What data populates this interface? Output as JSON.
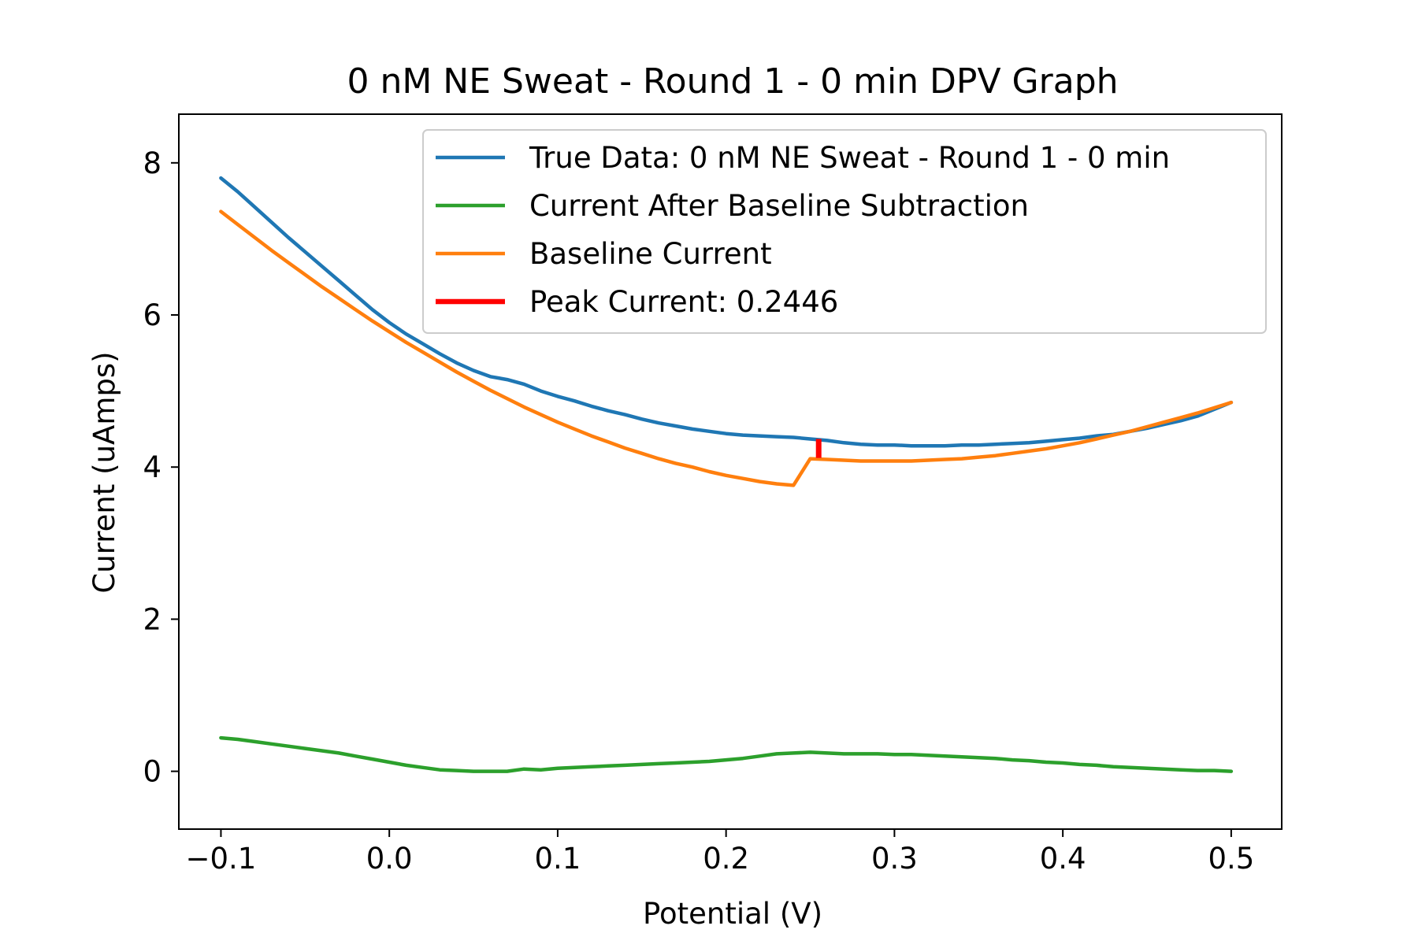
{
  "chart_data": {
    "type": "line",
    "title": "0 nM NE Sweat - Round 1 - 0 min DPV Graph",
    "xlabel": "Potential (V)",
    "ylabel": "Current (uAmps)",
    "xlim": [
      -0.125,
      0.53
    ],
    "ylim": [
      -0.76,
      8.64
    ],
    "xticks": [
      -0.1,
      0.0,
      0.1,
      0.2,
      0.3,
      0.4,
      0.5
    ],
    "xtick_labels": [
      "−0.1",
      "0.0",
      "0.1",
      "0.2",
      "0.3",
      "0.4",
      "0.5"
    ],
    "yticks": [
      0,
      2,
      4,
      6,
      8
    ],
    "ytick_labels": [
      "0",
      "2",
      "4",
      "6",
      "8"
    ],
    "grid": false,
    "legend_position": "top-right",
    "series": [
      {
        "name": "True Data: 0 nM NE Sweat - Round 1 - 0 min",
        "color": "#1f77b4",
        "x": [
          -0.1,
          -0.09,
          -0.08,
          -0.07,
          -0.06,
          -0.05,
          -0.04,
          -0.03,
          -0.02,
          -0.01,
          0.0,
          0.01,
          0.02,
          0.03,
          0.04,
          0.05,
          0.06,
          0.07,
          0.08,
          0.09,
          0.1,
          0.11,
          0.12,
          0.13,
          0.14,
          0.15,
          0.16,
          0.17,
          0.18,
          0.19,
          0.2,
          0.21,
          0.22,
          0.23,
          0.24,
          0.25,
          0.26,
          0.27,
          0.28,
          0.29,
          0.3,
          0.31,
          0.32,
          0.33,
          0.34,
          0.35,
          0.36,
          0.37,
          0.38,
          0.39,
          0.4,
          0.41,
          0.42,
          0.43,
          0.44,
          0.45,
          0.46,
          0.47,
          0.48,
          0.49,
          0.5
        ],
        "y": [
          7.8,
          7.62,
          7.42,
          7.22,
          7.02,
          6.83,
          6.64,
          6.45,
          6.26,
          6.07,
          5.9,
          5.75,
          5.62,
          5.49,
          5.37,
          5.27,
          5.19,
          5.15,
          5.09,
          5.0,
          4.93,
          4.87,
          4.8,
          4.74,
          4.69,
          4.63,
          4.58,
          4.54,
          4.5,
          4.47,
          4.44,
          4.42,
          4.41,
          4.4,
          4.39,
          4.37,
          4.35,
          4.32,
          4.3,
          4.29,
          4.29,
          4.28,
          4.28,
          4.28,
          4.29,
          4.29,
          4.3,
          4.31,
          4.32,
          4.34,
          4.36,
          4.38,
          4.41,
          4.43,
          4.47,
          4.51,
          4.56,
          4.61,
          4.67,
          4.76,
          4.85
        ]
      },
      {
        "name": "Current After Baseline Subtraction",
        "color": "#2ca02c",
        "x": [
          -0.1,
          -0.09,
          -0.08,
          -0.07,
          -0.06,
          -0.05,
          -0.04,
          -0.03,
          -0.02,
          -0.01,
          0.0,
          0.01,
          0.02,
          0.03,
          0.04,
          0.05,
          0.06,
          0.07,
          0.08,
          0.09,
          0.1,
          0.11,
          0.12,
          0.13,
          0.14,
          0.15,
          0.16,
          0.17,
          0.18,
          0.19,
          0.2,
          0.21,
          0.22,
          0.23,
          0.24,
          0.25,
          0.26,
          0.27,
          0.28,
          0.29,
          0.3,
          0.31,
          0.32,
          0.33,
          0.34,
          0.35,
          0.36,
          0.37,
          0.38,
          0.39,
          0.4,
          0.41,
          0.42,
          0.43,
          0.44,
          0.45,
          0.46,
          0.47,
          0.48,
          0.49,
          0.5
        ],
        "y": [
          0.44,
          0.42,
          0.39,
          0.36,
          0.33,
          0.3,
          0.27,
          0.24,
          0.2,
          0.16,
          0.12,
          0.08,
          0.05,
          0.02,
          0.01,
          0.0,
          0.0,
          0.0,
          0.03,
          0.02,
          0.04,
          0.05,
          0.06,
          0.07,
          0.08,
          0.09,
          0.1,
          0.11,
          0.12,
          0.13,
          0.15,
          0.17,
          0.2,
          0.23,
          0.24,
          0.25,
          0.24,
          0.23,
          0.23,
          0.23,
          0.22,
          0.22,
          0.21,
          0.2,
          0.19,
          0.18,
          0.17,
          0.15,
          0.14,
          0.12,
          0.11,
          0.09,
          0.08,
          0.06,
          0.05,
          0.04,
          0.03,
          0.02,
          0.01,
          0.01,
          0.0
        ]
      },
      {
        "name": "Baseline Current",
        "color": "#ff7f0e",
        "x": [
          -0.1,
          -0.09,
          -0.08,
          -0.07,
          -0.06,
          -0.05,
          -0.04,
          -0.03,
          -0.02,
          -0.01,
          0.0,
          0.01,
          0.02,
          0.03,
          0.04,
          0.05,
          0.06,
          0.07,
          0.08,
          0.09,
          0.1,
          0.11,
          0.12,
          0.13,
          0.14,
          0.15,
          0.16,
          0.17,
          0.18,
          0.19,
          0.2,
          0.21,
          0.22,
          0.23,
          0.24,
          0.25,
          0.26,
          0.27,
          0.28,
          0.29,
          0.3,
          0.31,
          0.32,
          0.33,
          0.34,
          0.35,
          0.36,
          0.37,
          0.38,
          0.39,
          0.4,
          0.41,
          0.42,
          0.43,
          0.44,
          0.45,
          0.46,
          0.47,
          0.48,
          0.49,
          0.5
        ],
        "y": [
          7.36,
          7.19,
          7.02,
          6.85,
          6.69,
          6.53,
          6.37,
          6.22,
          6.07,
          5.92,
          5.78,
          5.64,
          5.51,
          5.38,
          5.25,
          5.13,
          5.01,
          4.9,
          4.79,
          4.69,
          4.59,
          4.5,
          4.41,
          4.33,
          4.25,
          4.18,
          4.11,
          4.05,
          4.0,
          3.94,
          3.89,
          3.85,
          3.81,
          3.78,
          3.76,
          4.11,
          4.1,
          4.09,
          4.08,
          4.08,
          4.08,
          4.08,
          4.09,
          4.1,
          4.11,
          4.13,
          4.15,
          4.18,
          4.21,
          4.24,
          4.28,
          4.32,
          4.37,
          4.42,
          4.47,
          4.53,
          4.59,
          4.65,
          4.71,
          4.78,
          4.85
        ]
      }
    ],
    "peak": {
      "name": "Peak Current: 0.2446",
      "color": "#ff0000",
      "x": 0.255,
      "y_bottom": 4.12,
      "y_top": 4.37
    }
  }
}
